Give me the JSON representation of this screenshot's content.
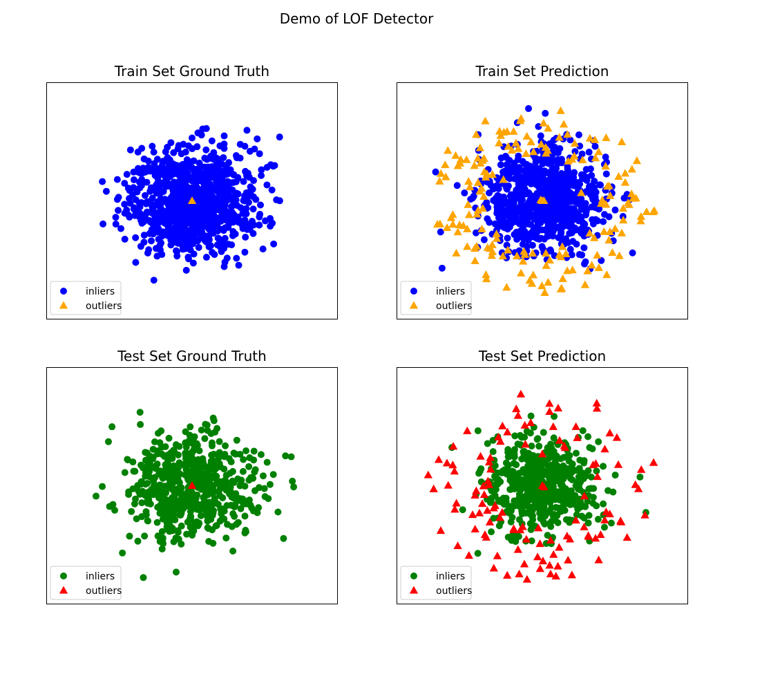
{
  "figure": {
    "title": "Demo of LOF Detector"
  },
  "chart_data": [
    {
      "type": "scatter",
      "title": "Train Set Ground Truth",
      "xlabel": "",
      "ylabel": "",
      "xlim": [
        -4.5,
        4.5
      ],
      "ylim": [
        -4.5,
        4.5
      ],
      "grid": false,
      "ticks": false,
      "legend": {
        "placement": "lower-left",
        "entries": [
          "inliers",
          "outliers"
        ]
      },
      "series": [
        {
          "name": "inliers",
          "marker": "circle",
          "color": "#0000ff",
          "distribution": "gaussian",
          "center": [
            0,
            0
          ],
          "std": 1.0,
          "count": 900
        },
        {
          "name": "outliers",
          "marker": "triangle",
          "color": "#ffa500",
          "points": [
            [
              0,
              0
            ]
          ]
        }
      ]
    },
    {
      "type": "scatter",
      "title": "Train Set Prediction",
      "xlabel": "",
      "ylabel": "",
      "xlim": [
        -4.5,
        4.5
      ],
      "ylim": [
        -4.5,
        4.5
      ],
      "grid": false,
      "ticks": false,
      "legend": {
        "placement": "lower-left",
        "entries": [
          "inliers",
          "outliers"
        ]
      },
      "series": [
        {
          "name": "inliers",
          "marker": "circle",
          "color": "#0000ff",
          "distribution": "gaussian",
          "center": [
            0,
            0
          ],
          "std": 0.95,
          "count": 800
        },
        {
          "name": "outliers",
          "marker": "triangle",
          "color": "#ffa500",
          "distribution": "ring",
          "r_min": 1.8,
          "r_max": 3.5,
          "count": 160,
          "points": [
            [
              0,
              0
            ],
            [
              0.05,
              0
            ],
            [
              -0.05,
              0.03
            ],
            [
              1.2,
              0.3
            ],
            [
              -1.2,
              0.8
            ],
            [
              0.8,
              1.5
            ]
          ]
        }
      ]
    },
    {
      "type": "scatter",
      "title": "Test Set Ground Truth",
      "xlabel": "",
      "ylabel": "",
      "xlim": [
        -4.5,
        4.5
      ],
      "ylim": [
        -4.5,
        4.5
      ],
      "grid": false,
      "ticks": false,
      "legend": {
        "placement": "lower-left",
        "entries": [
          "inliers",
          "outliers"
        ]
      },
      "series": [
        {
          "name": "inliers",
          "marker": "circle",
          "color": "#008000",
          "distribution": "gaussian",
          "center": [
            0,
            0
          ],
          "std": 1.0,
          "count": 600
        },
        {
          "name": "outliers",
          "marker": "triangle",
          "color": "#ff0000",
          "points": [
            [
              0,
              0
            ]
          ]
        }
      ]
    },
    {
      "type": "scatter",
      "title": "Test Set Prediction",
      "xlabel": "",
      "ylabel": "",
      "xlim": [
        -4.5,
        4.5
      ],
      "ylim": [
        -4.5,
        4.5
      ],
      "grid": false,
      "ticks": false,
      "legend": {
        "placement": "lower-left",
        "entries": [
          "inliers",
          "outliers"
        ]
      },
      "series": [
        {
          "name": "inliers",
          "marker": "circle",
          "color": "#008000",
          "distribution": "gaussian",
          "center": [
            0,
            0
          ],
          "std": 0.9,
          "count": 540
        },
        {
          "name": "outliers",
          "marker": "triangle",
          "color": "#ff0000",
          "distribution": "ring",
          "r_min": 1.6,
          "r_max": 3.6,
          "count": 110,
          "points": [
            [
              0,
              0
            ],
            [
              0.05,
              -0.05
            ],
            [
              0,
              1.2
            ],
            [
              1.3,
              -0.4
            ]
          ]
        }
      ]
    }
  ]
}
